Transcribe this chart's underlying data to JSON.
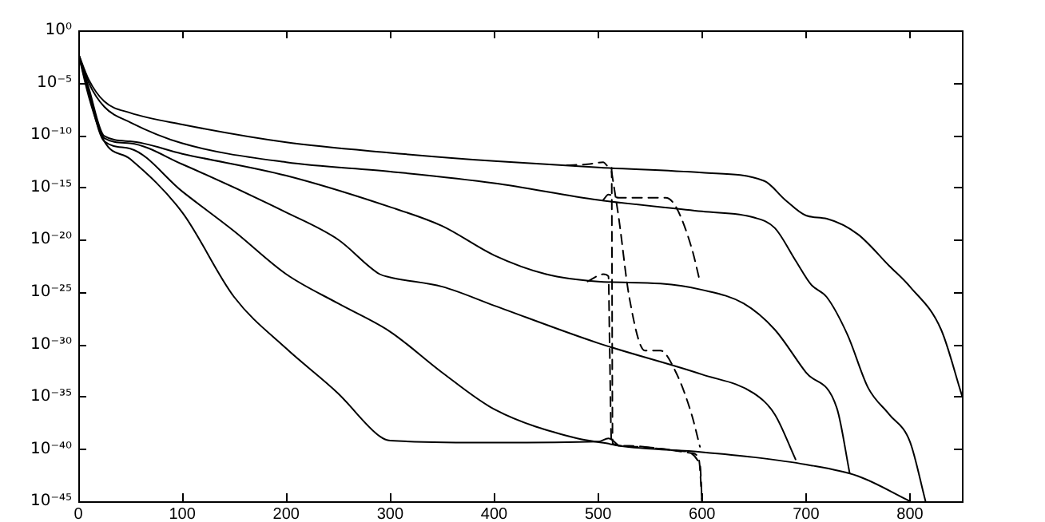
{
  "chart_data": {
    "type": "line",
    "log": true,
    "grid": false,
    "legend": false,
    "marker": "none",
    "xlim": [
      0,
      850
    ],
    "xticks": [
      0,
      100,
      200,
      300,
      400,
      500,
      600,
      700,
      800
    ],
    "ylim": [
      1e-45,
      1
    ],
    "yticks": [
      {
        "value": 1,
        "label": "10⁰"
      },
      {
        "value": 1e-05,
        "label": "10⁻⁵"
      },
      {
        "value": 1e-10,
        "label": "10⁻¹⁰"
      },
      {
        "value": 1e-15,
        "label": "10⁻¹⁵"
      },
      {
        "value": 1e-20,
        "label": "10⁻²⁰"
      },
      {
        "value": 1e-25,
        "label": "10⁻²⁵"
      },
      {
        "value": 1e-30,
        "label": "10⁻³⁰"
      },
      {
        "value": 1e-35,
        "label": "10⁻³⁵"
      },
      {
        "value": 1e-40,
        "label": "10⁻⁴⁰"
      },
      {
        "value": 1e-45,
        "label": "10⁻⁴⁵"
      }
    ],
    "series": [
      {
        "color": "#000000",
        "line_style": "solid",
        "x": [
          0,
          10,
          25,
          50,
          100,
          200,
          300,
          400,
          500,
          600,
          660,
          680,
          700,
          720,
          750,
          780,
          800,
          830,
          850
        ],
        "values": [
          0.0063,
          2e-05,
          1.6e-07,
          1.3e-08,
          1e-09,
          2e-11,
          2e-12,
          3.2e-13,
          7.9e-14,
          2.5e-14,
          4e-15,
          6.3e-17,
          2e-18,
          1e-18,
          3.2e-20,
          3.2e-23,
          3.2e-25,
          2.5e-29,
          1.3e-35
        ]
      },
      {
        "color": "#000000",
        "line_style": "solid",
        "x": [
          0,
          10,
          25,
          50,
          100,
          200,
          300,
          400,
          500,
          600,
          650,
          670,
          690,
          705,
          720,
          740,
          760,
          780,
          800,
          815
        ],
        "values": [
          0.0063,
          1e-05,
          5e-08,
          1.6e-09,
          1.6e-11,
          2.5e-13,
          3.2e-14,
          2.5e-15,
          6.3e-17,
          5e-18,
          1.3e-18,
          1.3e-19,
          1e-22,
          5e-25,
          3.2e-26,
          7.9e-30,
          6.3e-35,
          2e-37,
          5e-40,
          1e-45
        ]
      },
      {
        "color": "#000000",
        "line_style": "solid",
        "x": [
          0,
          10,
          25,
          50,
          100,
          200,
          300,
          350,
          400,
          450,
          500,
          560,
          600,
          640,
          670,
          700,
          730,
          742
        ],
        "values": [
          0.0063,
          3.2e-06,
          7.9e-11,
          2.5e-11,
          1.6e-12,
          1.3e-14,
          1.3e-17,
          2e-19,
          3.2e-22,
          5e-24,
          1e-24,
          6.3e-25,
          1.6e-25,
          7.9e-27,
          2.5e-29,
          2e-33,
          6.3e-37,
          5e-43
        ]
      },
      {
        "color": "#000000",
        "line_style": "solid",
        "x": [
          0,
          10,
          25,
          50,
          100,
          200,
          250,
          290,
          300,
          350,
          400,
          500,
          600,
          650,
          670,
          690
        ],
        "values": [
          0.0063,
          2e-06,
          5e-11,
          1.6e-11,
          1.6e-13,
          4e-18,
          1e-20,
          5e-24,
          2.5e-24,
          3.2e-25,
          5e-27,
          1.3e-30,
          1.3e-33,
          2e-35,
          2e-37,
          1e-41
        ]
      },
      {
        "color": "#000000",
        "line_style": "solid",
        "x": [
          0,
          10,
          25,
          50,
          100,
          150,
          200,
          250,
          300,
          350,
          400,
          480,
          510,
          520,
          600,
          650,
          700,
          750,
          800
        ],
        "values": [
          0.0063,
          1e-06,
          2.5e-11,
          5e-12,
          4e-16,
          6.3e-20,
          5e-24,
          7.9e-27,
          1.6e-29,
          2e-33,
          6.3e-37,
          1e-39,
          3.2e-40,
          2e-40,
          5e-41,
          1.6e-41,
          3.2e-42,
          2.5e-43,
          1e-45
        ]
      },
      {
        "color": "#000000",
        "line_style": "solid",
        "x": [
          0,
          10,
          25,
          50,
          100,
          150,
          200,
          250,
          290,
          300,
          400,
          500,
          510,
          520
        ],
        "values": [
          0.0063,
          5e-07,
          2.5e-11,
          5e-13,
          4e-18,
          3.2e-26,
          4e-31,
          2e-35,
          1.6e-39,
          6.3e-40,
          4e-40,
          5e-40,
          1e-39,
          2e-40
        ]
      },
      {
        "color": "#000000",
        "line_style": "dashed",
        "x": [
          470,
          490,
          505,
          510,
          513,
          514,
          530,
          560,
          590,
          597,
          600
        ],
        "values": [
          1.3e-13,
          1.6e-13,
          2.5e-13,
          1e-13,
          1e-13,
          3.2e-40,
          2e-40,
          1e-40,
          4e-41,
          1e-41,
          1e-45
        ]
      },
      {
        "color": "#000000",
        "line_style": "dashed",
        "x": [
          505,
          510,
          520,
          565,
          575,
          590,
          598
        ],
        "values": [
          6.3e-17,
          2e-16,
          1e-16,
          1e-16,
          1.3e-17,
          1.6e-21,
          1e-24
        ]
      },
      {
        "color": "#000000",
        "line_style": "dashed",
        "x": [
          513,
          520,
          530,
          545,
          560,
          575,
          590,
          598
        ],
        "values": [
          3.2e-14,
          1e-18,
          3.2e-26,
          2.5e-31,
          2.5e-31,
          2e-33,
          2e-37,
          1.6e-40
        ]
      },
      {
        "color": "#000000",
        "line_style": "dashed",
        "x": [
          490,
          505,
          510,
          511,
          513,
          540,
          580,
          598,
          600
        ],
        "values": [
          1e-24,
          5e-24,
          3.2e-24,
          5e-30,
          3.2e-40,
          1.6e-40,
          6.3e-41,
          3.2e-42,
          1e-45
        ]
      }
    ]
  }
}
